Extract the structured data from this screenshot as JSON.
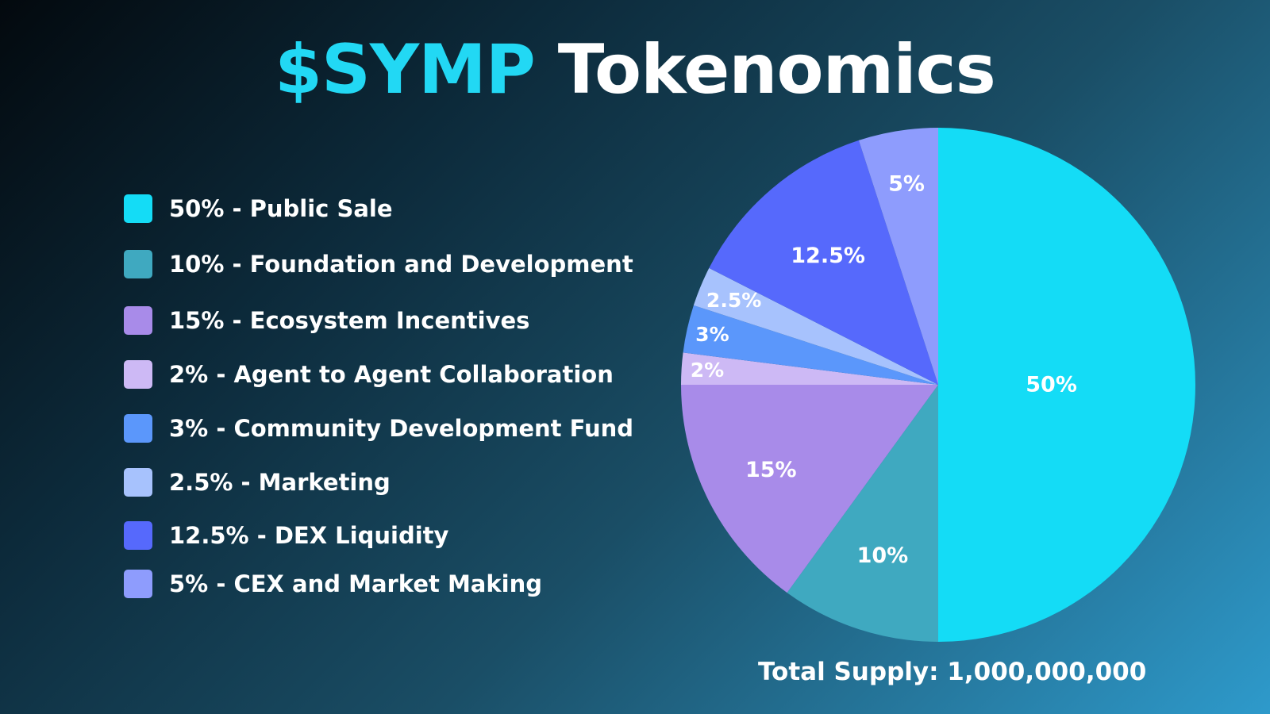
{
  "title": {
    "accent": "$SYMP",
    "rest": "Tokenomics"
  },
  "legend": [
    {
      "label": "50% - Public Sale",
      "color": "#14dcf6"
    },
    {
      "label": "10% - Foundation and Development",
      "color": "#3fa9c0"
    },
    {
      "label": "15% - Ecosystem Incentives",
      "color": "#a88be9"
    },
    {
      "label": "2% - Agent to Agent Collaboration",
      "color": "#cdb9f5"
    },
    {
      "label": "3% - Community Development Fund",
      "color": "#5b97fb"
    },
    {
      "label": "2.5% - Marketing",
      "color": "#a7c2fd"
    },
    {
      "label": "12.5% - DEX Liquidity",
      "color": "#5669fc"
    },
    {
      "label": "5% - CEX and Market Making",
      "color": "#8e9cfd"
    }
  ],
  "total_supply": "Total Supply: 1,000,000,000",
  "chart_data": {
    "type": "pie",
    "title": "$SYMP Tokenomics",
    "slices": [
      {
        "name": "Public Sale",
        "value": 50,
        "label": "50%",
        "color": "#14dcf6"
      },
      {
        "name": "Foundation and Development",
        "value": 10,
        "label": "10%",
        "color": "#3fa9c0"
      },
      {
        "name": "Ecosystem Incentives",
        "value": 15,
        "label": "15%",
        "color": "#a88be9"
      },
      {
        "name": "Agent to Agent Collaboration",
        "value": 2,
        "label": "2%",
        "color": "#cdb9f5"
      },
      {
        "name": "Community Development Fund",
        "value": 3,
        "label": "3%",
        "color": "#5b97fb"
      },
      {
        "name": "Marketing",
        "value": 2.5,
        "label": "2.5%",
        "color": "#a7c2fd"
      },
      {
        "name": "DEX Liquidity",
        "value": 12.5,
        "label": "12.5%",
        "color": "#5669fc"
      },
      {
        "name": "CEX and Market Making",
        "value": 5,
        "label": "5%",
        "color": "#8e9cfd"
      }
    ],
    "legend_position": "left",
    "start": "top",
    "direction": "clockwise"
  }
}
